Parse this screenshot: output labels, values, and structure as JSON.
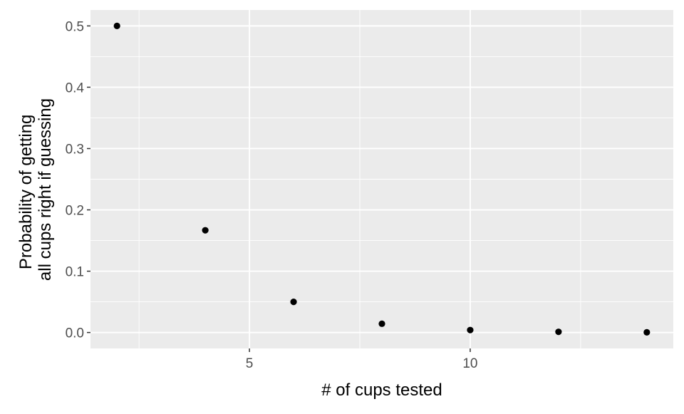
{
  "chart_data": {
    "type": "scatter",
    "title": "",
    "xlabel": "# of cups tested",
    "ylabel_lines": [
      "Probability of getting",
      "all cups right if guessing"
    ],
    "x": [
      2,
      4,
      6,
      8,
      10,
      12,
      14
    ],
    "y": [
      0.5,
      0.1667,
      0.05,
      0.0143,
      0.004,
      0.0011,
      0.0003
    ],
    "xlim": [
      1.4,
      14.6
    ],
    "ylim": [
      -0.026,
      0.526
    ],
    "x_major_ticks": [
      5,
      10
    ],
    "x_tick_labels": [
      "5",
      "10"
    ],
    "x_minor_ticks": [
      2.5,
      7.5,
      12.5
    ],
    "y_major_ticks": [
      0.0,
      0.1,
      0.2,
      0.3,
      0.4,
      0.5
    ],
    "y_tick_labels": [
      "0.0",
      "0.1",
      "0.2",
      "0.3",
      "0.4",
      "0.5"
    ],
    "y_minor_ticks": [
      0.05,
      0.15,
      0.25,
      0.35,
      0.45
    ],
    "grid": true,
    "legend": "none",
    "colors": {
      "panel_background": "#ebebeb",
      "grid_line": "#ffffff",
      "point": "#000000",
      "tick": "#333333"
    }
  }
}
